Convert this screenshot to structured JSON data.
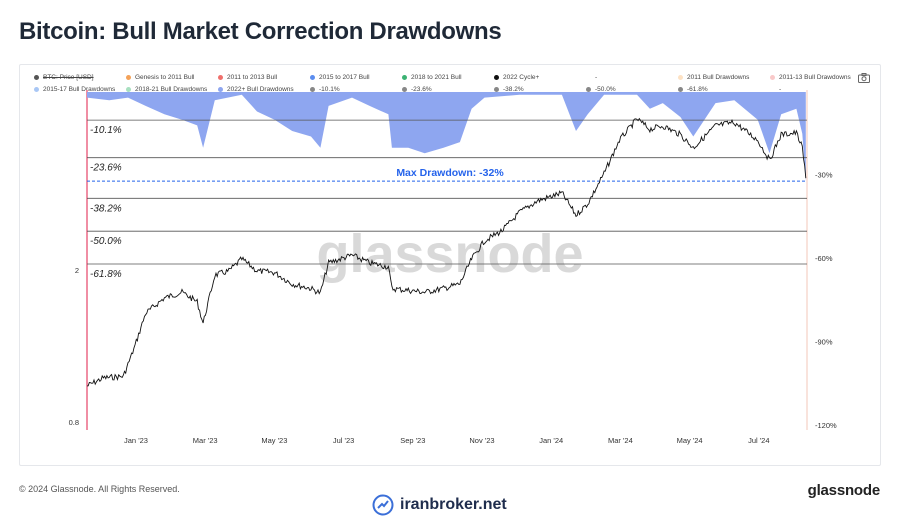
{
  "header": {
    "title": "Bitcoin: Bull Market Correction Drawdowns"
  },
  "legend": {
    "row1": [
      {
        "label": "BTC: Price [USD]",
        "color": "#555555",
        "strike": true
      },
      {
        "label": "Genesis to 2011 Bull",
        "color": "#f4a259"
      },
      {
        "label": "2011 to 2013 Bull",
        "color": "#ef6f6c"
      },
      {
        "label": "2015 to 2017 Bull",
        "color": "#5b8def"
      },
      {
        "label": "2018 to 2021 Bull",
        "color": "#3bb273"
      },
      {
        "label": "2022 Cycle+",
        "color": "#111111"
      },
      {
        "label": "-",
        "color": "#ffffff"
      },
      {
        "label": "2011 Bull Drawdowns",
        "color": "#fde2c4"
      },
      {
        "label": "2011-13 Bull Drawdowns",
        "color": "#f9c9c9"
      }
    ],
    "row2": [
      {
        "label": "2015-17 Bull Drawdowns",
        "color": "#a9c7f5"
      },
      {
        "label": "2018-21 Bull Drawdowns",
        "color": "#a8e0c0"
      },
      {
        "label": "2022+ Bull Drawdowns",
        "color": "#8ea6f0"
      },
      {
        "label": "-10.1%",
        "color": "#888888"
      },
      {
        "label": "-23.6%",
        "color": "#888888"
      },
      {
        "label": "-38.2%",
        "color": "#888888"
      },
      {
        "label": "-50.0%",
        "color": "#888888"
      },
      {
        "label": "-61.8%",
        "color": "#888888"
      },
      {
        "label": "-",
        "color": "#ffffff"
      }
    ]
  },
  "footer": {
    "copyright": "© 2024 Glassnode. All Rights Reserved.",
    "brand": "glassnode",
    "watermark": "iranbroker.net"
  },
  "colors": {
    "drawdown_fill": "#8ea6f0",
    "price_line": "#111111",
    "max_line": "#2563eb",
    "level_line": "#555555",
    "left_axis": "#e11d48"
  },
  "chart_data": {
    "type": "line",
    "title": "Bitcoin: Bull Market Correction Drawdowns",
    "watermark": "glassnode",
    "x_ticks": [
      "Jan '23",
      "Mar '23",
      "May '23",
      "Jul '23",
      "Sep '23",
      "Nov '23",
      "Jan '24",
      "Mar '24",
      "May '24",
      "Jul '24"
    ],
    "left_axis": {
      "scale": "log",
      "ticks": [
        "2",
        "0.8"
      ]
    },
    "right_axis": {
      "ticks": [
        "-30%",
        "-60%",
        "-90%",
        "-120%"
      ],
      "ylim": [
        -120,
        0
      ]
    },
    "levels": [
      {
        "label": "-10.1%",
        "value": -10.1
      },
      {
        "label": "-23.6%",
        "value": -23.6
      },
      {
        "label": "-38.2%",
        "value": -38.2
      },
      {
        "label": "-50.0%",
        "value": -50.0
      },
      {
        "label": "-61.8%",
        "value": -61.8
      }
    ],
    "max_drawdown": {
      "label": "Max Drawdown: -32%",
      "value": -32
    },
    "price_series": [
      [
        "2022-12-01",
        1.0
      ],
      [
        "2022-12-15",
        1.05
      ],
      [
        "2023-01-01",
        1.06
      ],
      [
        "2023-01-10",
        1.25
      ],
      [
        "2023-01-20",
        1.55
      ],
      [
        "2023-02-05",
        1.7
      ],
      [
        "2023-02-20",
        1.76
      ],
      [
        "2023-03-05",
        1.66
      ],
      [
        "2023-03-10",
        1.46
      ],
      [
        "2023-03-20",
        1.95
      ],
      [
        "2023-04-01",
        2.0
      ],
      [
        "2023-04-12",
        2.15
      ],
      [
        "2023-04-25",
        2.0
      ],
      [
        "2023-05-10",
        1.98
      ],
      [
        "2023-05-25",
        1.85
      ],
      [
        "2023-06-10",
        1.8
      ],
      [
        "2023-06-18",
        1.75
      ],
      [
        "2023-06-25",
        2.1
      ],
      [
        "2023-07-05",
        2.15
      ],
      [
        "2023-07-15",
        2.2
      ],
      [
        "2023-07-30",
        2.1
      ],
      [
        "2023-08-15",
        2.05
      ],
      [
        "2023-08-18",
        1.8
      ],
      [
        "2023-09-01",
        1.78
      ],
      [
        "2023-09-15",
        1.76
      ],
      [
        "2023-10-01",
        1.8
      ],
      [
        "2023-10-15",
        1.85
      ],
      [
        "2023-10-25",
        2.15
      ],
      [
        "2023-11-05",
        2.4
      ],
      [
        "2023-11-20",
        2.55
      ],
      [
        "2023-12-05",
        2.85
      ],
      [
        "2023-12-20",
        3.05
      ],
      [
        "2024-01-10",
        3.2
      ],
      [
        "2024-01-22",
        2.8
      ],
      [
        "2024-02-01",
        3.0
      ],
      [
        "2024-02-15",
        3.6
      ],
      [
        "2024-02-28",
        4.4
      ],
      [
        "2024-03-14",
        5.0
      ],
      [
        "2024-03-25",
        4.7
      ],
      [
        "2024-04-05",
        4.8
      ],
      [
        "2024-04-20",
        4.55
      ],
      [
        "2024-05-01",
        4.2
      ],
      [
        "2024-05-20",
        4.8
      ],
      [
        "2024-06-05",
        4.9
      ],
      [
        "2024-06-25",
        4.4
      ],
      [
        "2024-07-05",
        3.9
      ],
      [
        "2024-07-15",
        4.55
      ],
      [
        "2024-07-28",
        4.6
      ],
      [
        "2024-08-02",
        4.2
      ],
      [
        "2024-08-05",
        3.5
      ]
    ],
    "drawdown_series": [
      [
        "2022-12-01",
        -2
      ],
      [
        "2022-12-20",
        -3
      ],
      [
        "2023-01-05",
        -2
      ],
      [
        "2023-01-20",
        -5
      ],
      [
        "2023-02-05",
        -8
      ],
      [
        "2023-02-20",
        -10
      ],
      [
        "2023-03-05",
        -12
      ],
      [
        "2023-03-10",
        -20
      ],
      [
        "2023-03-20",
        -3
      ],
      [
        "2023-04-12",
        -1
      ],
      [
        "2023-04-25",
        -7
      ],
      [
        "2023-05-10",
        -10
      ],
      [
        "2023-05-25",
        -14
      ],
      [
        "2023-06-10",
        -16
      ],
      [
        "2023-06-18",
        -20
      ],
      [
        "2023-06-25",
        -5
      ],
      [
        "2023-07-15",
        -2
      ],
      [
        "2023-07-30",
        -5
      ],
      [
        "2023-08-15",
        -8
      ],
      [
        "2023-08-18",
        -20
      ],
      [
        "2023-09-01",
        -20
      ],
      [
        "2023-09-15",
        -22
      ],
      [
        "2023-10-01",
        -20
      ],
      [
        "2023-10-15",
        -18
      ],
      [
        "2023-10-25",
        -6
      ],
      [
        "2023-11-05",
        -2
      ],
      [
        "2023-12-05",
        -1
      ],
      [
        "2024-01-10",
        -1
      ],
      [
        "2024-01-22",
        -14
      ],
      [
        "2024-02-01",
        -8
      ],
      [
        "2024-02-15",
        -1
      ],
      [
        "2024-03-14",
        -1
      ],
      [
        "2024-03-25",
        -6
      ],
      [
        "2024-04-05",
        -4
      ],
      [
        "2024-04-20",
        -9
      ],
      [
        "2024-05-01",
        -16
      ],
      [
        "2024-05-20",
        -4
      ],
      [
        "2024-06-05",
        -3
      ],
      [
        "2024-06-25",
        -10
      ],
      [
        "2024-07-05",
        -22
      ],
      [
        "2024-07-15",
        -8
      ],
      [
        "2024-07-28",
        -6
      ],
      [
        "2024-08-02",
        -15
      ],
      [
        "2024-08-05",
        -32
      ]
    ]
  }
}
